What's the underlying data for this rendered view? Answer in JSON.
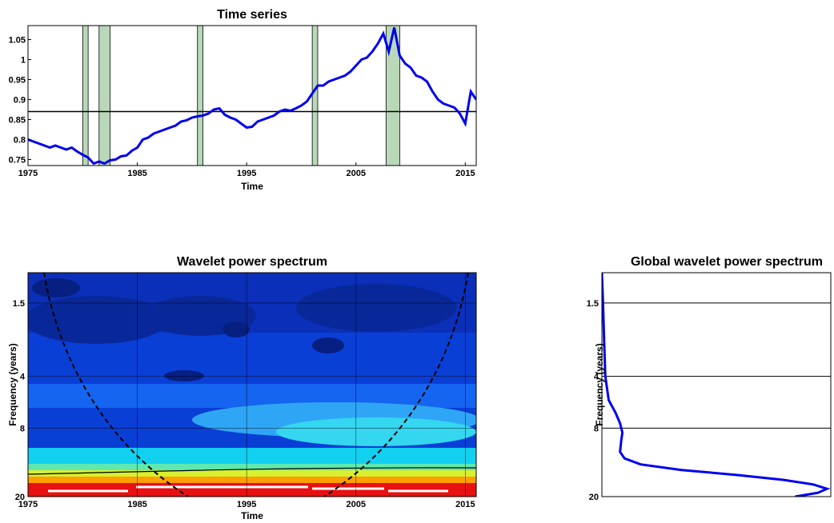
{
  "chart_data": [
    {
      "type": "line",
      "title": "Time series",
      "xlabel": "Time",
      "ylabel": "",
      "xlim": [
        1975,
        2016
      ],
      "ylim": [
        0.735,
        1.085
      ],
      "x_ticks": [
        1975,
        1985,
        1995,
        2005,
        2015
      ],
      "y_ticks": [
        0.75,
        0.8,
        0.85,
        0.9,
        0.95,
        1,
        1.05
      ],
      "x_tick_labels": [
        "1975",
        "1985",
        "1995",
        "2005",
        "2015"
      ],
      "y_tick_labels": [
        "0.75",
        "0.8",
        "0.85",
        "0.9",
        "0.95",
        "1",
        "1.05"
      ],
      "reference_line": 0.87,
      "recessions": [
        [
          1980.0,
          1980.5
        ],
        [
          1981.5,
          1982.5
        ],
        [
          1990.5,
          1991.0
        ],
        [
          2001.0,
          2001.5
        ],
        [
          2007.75,
          2009.0
        ]
      ],
      "series_color": "#0000ee",
      "recession_color": "#b9d8b9",
      "series": [
        {
          "x": [
            1975.0,
            1975.5,
            1976.0,
            1976.5,
            1977.0,
            1977.5,
            1978.0,
            1978.5,
            1979.0,
            1979.5,
            1980.0,
            1980.5,
            1981.0,
            1981.5,
            1982.0,
            1982.5,
            1983.0,
            1983.5,
            1984.0,
            1984.5,
            1985.0,
            1985.5,
            1986.0,
            1986.5,
            1987.0,
            1987.5,
            1988.0,
            1988.5,
            1989.0,
            1989.5,
            1990.0,
            1990.5,
            1991.0,
            1991.5,
            1992.0,
            1992.5,
            1993.0,
            1993.5,
            1994.0,
            1994.5,
            1995.0,
            1995.5,
            1996.0,
            1996.5,
            1997.0,
            1997.5,
            1998.0,
            1998.5,
            1999.0,
            1999.5,
            2000.0,
            2000.5,
            2001.0,
            2001.5,
            2002.0,
            2002.5,
            2003.0,
            2003.5,
            2004.0,
            2004.5,
            2005.0,
            2005.5,
            2006.0,
            2006.5,
            2007.0,
            2007.5,
            2008.0,
            2008.5,
            2009.0,
            2009.5,
            2010.0,
            2010.5,
            2011.0,
            2011.5,
            2012.0,
            2012.5,
            2013.0,
            2013.5,
            2014.0,
            2014.5,
            2015.0,
            2015.5,
            2016.0
          ],
          "y": [
            0.8,
            0.795,
            0.79,
            0.785,
            0.78,
            0.785,
            0.78,
            0.775,
            0.78,
            0.77,
            0.762,
            0.755,
            0.74,
            0.745,
            0.74,
            0.748,
            0.75,
            0.758,
            0.76,
            0.772,
            0.78,
            0.8,
            0.805,
            0.815,
            0.82,
            0.825,
            0.83,
            0.835,
            0.845,
            0.848,
            0.855,
            0.858,
            0.86,
            0.865,
            0.875,
            0.878,
            0.862,
            0.855,
            0.85,
            0.84,
            0.83,
            0.832,
            0.845,
            0.85,
            0.855,
            0.86,
            0.87,
            0.875,
            0.872,
            0.878,
            0.885,
            0.895,
            0.915,
            0.935,
            0.935,
            0.945,
            0.95,
            0.955,
            0.96,
            0.97,
            0.985,
            1.0,
            1.005,
            1.02,
            1.04,
            1.065,
            1.02,
            1.08,
            1.01,
            0.99,
            0.98,
            0.96,
            0.955,
            0.945,
            0.92,
            0.9,
            0.89,
            0.885,
            0.88,
            0.865,
            0.84,
            0.92,
            0.9
          ]
        }
      ]
    },
    {
      "type": "heatmap",
      "title": "Wavelet power spectrum",
      "xlabel": "Time",
      "ylabel": "Frequency (years)",
      "xlim": [
        1975,
        2016
      ],
      "ylim": [
        1.0,
        20
      ],
      "x_ticks": [
        1975,
        1985,
        1995,
        2005,
        2015
      ],
      "x_tick_labels": [
        "1975",
        "1985",
        "1995",
        "2005",
        "2015"
      ],
      "y_ticks": [
        1.5,
        4,
        8,
        20
      ],
      "y_tick_labels": [
        "1.5",
        "4",
        "8",
        "20"
      ],
      "colormap": "jet",
      "cone_of_influence": "dashed",
      "significance_contour_period": 14.5
    },
    {
      "type": "line",
      "title": "Global wavelet power spectrum",
      "xlabel": "",
      "ylabel": "Frequency (years)",
      "ylim": [
        1.0,
        20
      ],
      "y_ticks": [
        1.5,
        4,
        8,
        20
      ],
      "y_tick_labels": [
        "1.5",
        "4",
        "8",
        "20"
      ],
      "series_color": "#0000ee",
      "series": [
        {
          "period": [
            1.0,
            1.5,
            2.5,
            4,
            5.5,
            6.5,
            7.5,
            8.5,
            9.5,
            11,
            12,
            13,
            14,
            15,
            16,
            17,
            18,
            19,
            19.5,
            20
          ],
          "power": [
            0.0,
            0.005,
            0.01,
            0.015,
            0.03,
            0.06,
            0.08,
            0.09,
            0.085,
            0.08,
            0.1,
            0.17,
            0.35,
            0.6,
            0.8,
            0.93,
            0.99,
            0.95,
            0.9,
            0.85
          ]
        }
      ]
    }
  ]
}
